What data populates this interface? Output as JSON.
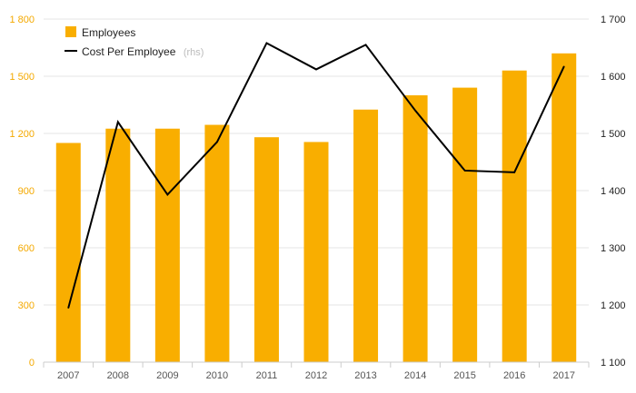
{
  "chart_data": {
    "type": "bar",
    "categories": [
      "2007",
      "2008",
      "2009",
      "2010",
      "2011",
      "2012",
      "2013",
      "2014",
      "2015",
      "2016",
      "2017"
    ],
    "series": [
      {
        "name": "Employees",
        "type": "bar",
        "axis": "left",
        "color": "#f9ae00",
        "values": [
          1150,
          1225,
          1225,
          1245,
          1180,
          1155,
          1325,
          1400,
          1440,
          1530,
          1620
        ]
      },
      {
        "name": "Cost Per Employee",
        "name_suffix": "(rhs)",
        "type": "line",
        "axis": "right",
        "color": "#000000",
        "values": [
          1195,
          1520,
          1393,
          1485,
          1658,
          1612,
          1655,
          1540,
          1435,
          1432,
          1617
        ]
      }
    ],
    "ylim": [
      0,
      1800
    ],
    "yticks": [
      0,
      300,
      600,
      900,
      1200,
      1500,
      1800
    ],
    "ytick_labels": [
      "0",
      "300",
      "600",
      "900",
      "1 200",
      "1 500",
      "1 800"
    ],
    "y2lim": [
      1100,
      1700
    ],
    "y2ticks": [
      1100,
      1200,
      1300,
      1400,
      1500,
      1600,
      1700
    ],
    "y2tick_labels": [
      "1 100",
      "1 200",
      "1 300",
      "1 400",
      "1 500",
      "1 600",
      "1 700"
    ],
    "grid": true,
    "legend_position": "top-left",
    "colors": {
      "left_axis": "#f4a900",
      "right_axis": "#222222",
      "grid": "#e6e6e6"
    }
  }
}
